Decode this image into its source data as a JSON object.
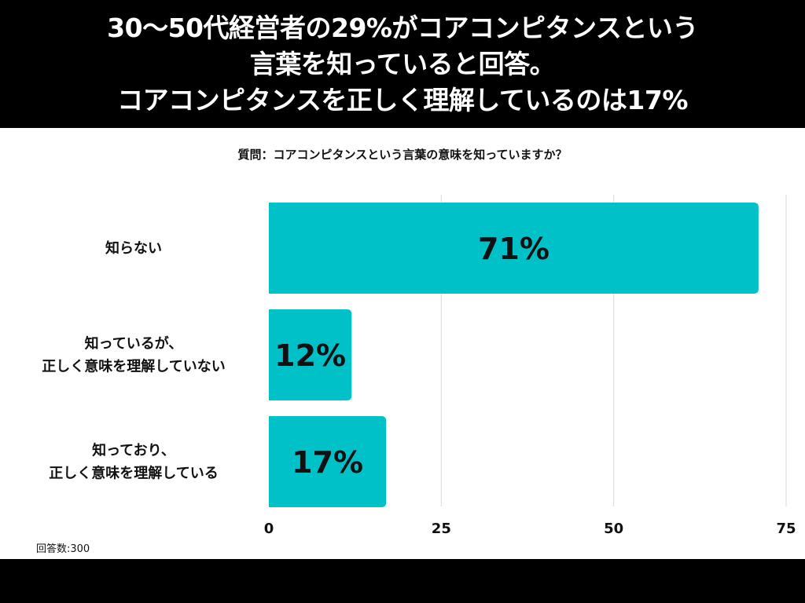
{
  "header": {
    "title_lines": [
      "30〜50代経営者の29%がコアコンピタンスという",
      "言葉を知っていると回答。",
      "コアコンピタンスを正しく理解しているのは17%"
    ]
  },
  "question": "質問：コアコンピタンスという言葉の意味を知っていますか？",
  "footnote": "回答数:300",
  "colors": {
    "bar": "#00c1c8",
    "banner": "#000000",
    "grid": "#d9d9d9"
  },
  "chart_data": {
    "type": "bar",
    "orientation": "horizontal",
    "categories": [
      [
        "知らない"
      ],
      [
        "知っているが、",
        "正しく意味を理解していない"
      ],
      [
        "知っており、",
        "正しく意味を理解している"
      ]
    ],
    "values": [
      71,
      12,
      17
    ],
    "value_labels": [
      "71%",
      "12%",
      "17%"
    ],
    "xlim": [
      0,
      75
    ],
    "xticks": [
      0,
      25,
      50,
      75
    ],
    "grid": true
  }
}
